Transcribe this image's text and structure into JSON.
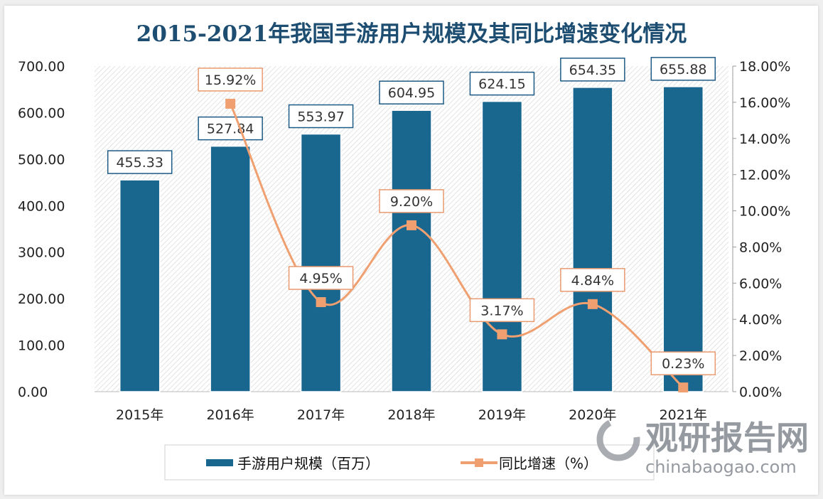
{
  "chart_data": {
    "type": "bar+line",
    "title": "2015-2021年我国手游用户规模及其同比增速变化情况",
    "categories": [
      "2015年",
      "2016年",
      "2017年",
      "2018年",
      "2019年",
      "2020年",
      "2021年"
    ],
    "series": [
      {
        "name": "手游用户规模（百万）",
        "type": "bar",
        "axis": "left",
        "values": [
          455.33,
          527.84,
          553.97,
          604.95,
          624.15,
          654.35,
          655.88
        ],
        "labels": [
          "455.33",
          "527.84",
          "553.97",
          "604.95",
          "624.15",
          "654.35",
          "655.88"
        ],
        "color": "#19668f"
      },
      {
        "name": "同比增速（%）",
        "type": "line",
        "axis": "right",
        "smooth": true,
        "marker": "square",
        "values": [
          null,
          15.92,
          4.95,
          9.2,
          3.17,
          4.84,
          0.23
        ],
        "labels": [
          null,
          "15.92%",
          "4.95%",
          "9.20%",
          "3.17%",
          "4.84%",
          "0.23%"
        ],
        "color": "#f0a070"
      }
    ],
    "yleft": {
      "range": [
        0,
        700
      ],
      "ticks": [
        "0.00",
        "100.00",
        "200.00",
        "300.00",
        "400.00",
        "500.00",
        "600.00",
        "700.00"
      ]
    },
    "yright": {
      "range": [
        0,
        18
      ],
      "ticks": [
        "0.00%",
        "2.00%",
        "4.00%",
        "6.00%",
        "8.00%",
        "10.00%",
        "12.00%",
        "14.00%",
        "16.00%",
        "18.00%"
      ]
    },
    "grid": false,
    "legend": "bottom",
    "background": "diagonal-hatch"
  },
  "watermark": {
    "name": "观研报告网",
    "url_text": "chinabaogao.com"
  }
}
